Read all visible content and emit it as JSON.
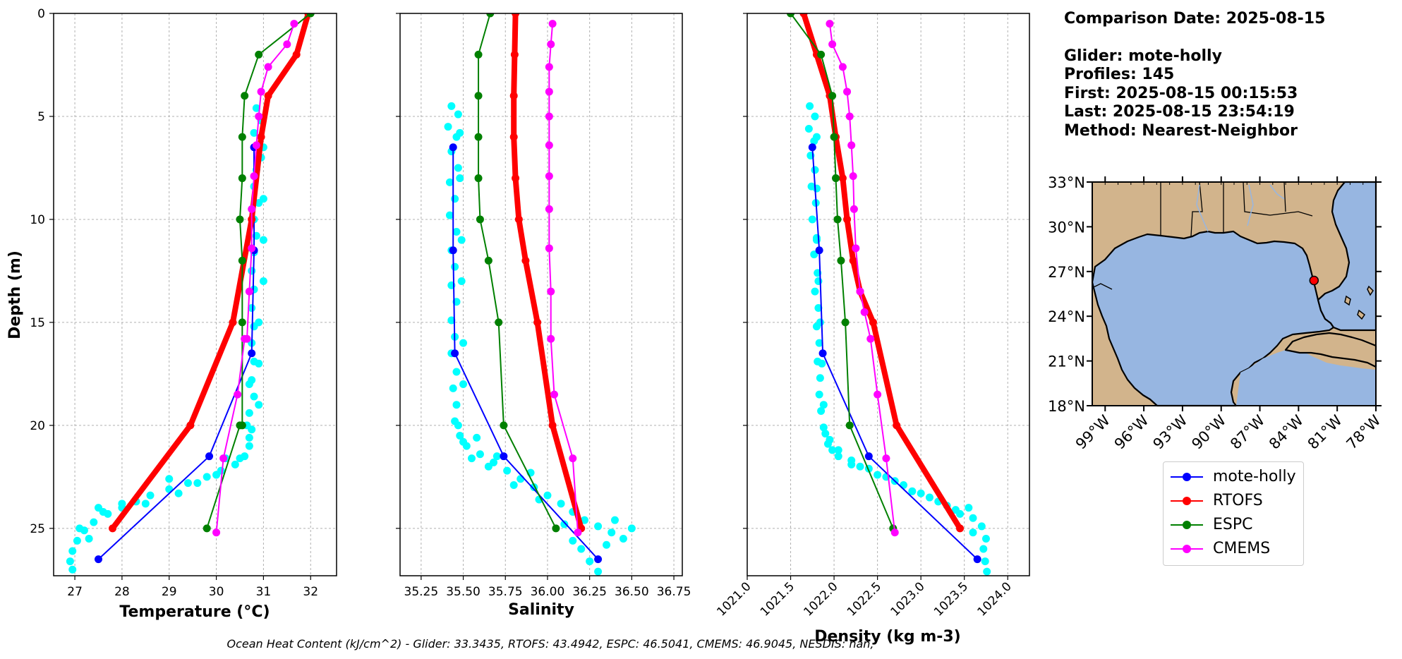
{
  "figure": {
    "footer": "Ocean Heat Content (kJ/cm^2) - Glider: 33.3435,  RTOFS: 43.4942,  ESPC: 46.5041,  CMEMS: 46.9045,  NESDIS: nan,"
  },
  "info": {
    "comparison_date": "Comparison Date: 2025-08-15",
    "glider": "Glider: mote-holly",
    "profiles": "Profiles: 145",
    "first": "First: 2025-08-15 00:15:53",
    "last": "Last: 2025-08-15 23:54:19",
    "method": "Method: Nearest-Neighbor"
  },
  "legend": [
    {
      "label": "mote-holly",
      "color": "#0000ff"
    },
    {
      "label": "RTOFS",
      "color": "#ff0000"
    },
    {
      "label": "ESPC",
      "color": "#008000"
    },
    {
      "label": "CMEMS",
      "color": "#ff00ff"
    }
  ],
  "chart_data": [
    {
      "type": "line",
      "title": "",
      "xlabel": "Temperature (°C)",
      "ylabel": "Depth (m)",
      "xlim": [
        26.55,
        32.55
      ],
      "ylim": [
        27.3,
        0
      ],
      "xticks": [
        27,
        28,
        29,
        30,
        31,
        32
      ],
      "yticks": [
        0,
        5,
        10,
        15,
        20,
        25
      ],
      "grid": true,
      "raw_color": "#00ffff",
      "raw_points": [
        [
          30.85,
          4.6
        ],
        [
          30.95,
          5.2
        ],
        [
          30.8,
          5.8
        ],
        [
          30.9,
          6.4
        ],
        [
          30.95,
          7.0
        ],
        [
          30.85,
          7.6
        ],
        [
          30.8,
          8.4
        ],
        [
          30.9,
          9.2
        ],
        [
          30.8,
          10.0
        ],
        [
          30.85,
          10.8
        ],
        [
          30.8,
          11.6
        ],
        [
          30.75,
          12.5
        ],
        [
          30.8,
          13.4
        ],
        [
          30.75,
          14.3
        ],
        [
          30.8,
          15.2
        ],
        [
          30.75,
          16.0
        ],
        [
          30.8,
          16.9
        ],
        [
          30.75,
          17.8
        ],
        [
          30.8,
          18.6
        ],
        [
          30.7,
          19.4
        ],
        [
          30.75,
          20.2
        ],
        [
          30.7,
          21.0
        ],
        [
          30.6,
          21.5
        ],
        [
          30.4,
          21.9
        ],
        [
          30.1,
          22.2
        ],
        [
          29.8,
          22.5
        ],
        [
          29.4,
          22.8
        ],
        [
          29.0,
          23.1
        ],
        [
          28.6,
          23.4
        ],
        [
          28.3,
          23.7
        ],
        [
          28.0,
          24.0
        ],
        [
          27.7,
          24.3
        ],
        [
          27.4,
          24.7
        ],
        [
          27.2,
          25.1
        ],
        [
          27.05,
          25.6
        ],
        [
          26.95,
          26.1
        ],
        [
          26.9,
          26.6
        ],
        [
          26.95,
          27.0
        ],
        [
          27.1,
          25.0
        ],
        [
          27.5,
          24.0
        ],
        [
          28.5,
          23.8
        ],
        [
          29.2,
          23.3
        ],
        [
          29.6,
          22.8
        ],
        [
          30.0,
          22.4
        ],
        [
          30.5,
          21.6
        ],
        [
          30.7,
          20.6
        ],
        [
          30.9,
          19.0
        ],
        [
          30.9,
          17.0
        ],
        [
          30.9,
          15.0
        ],
        [
          31.0,
          13.0
        ],
        [
          31.0,
          11.0
        ],
        [
          31.0,
          9.0
        ],
        [
          31.0,
          6.5
        ],
        [
          30.7,
          18.0
        ],
        [
          30.65,
          20.0
        ],
        [
          30.2,
          21.6
        ],
        [
          29.0,
          22.6
        ],
        [
          28.0,
          23.8
        ],
        [
          27.3,
          25.5
        ],
        [
          27.6,
          24.2
        ]
      ],
      "series": [
        {
          "name": "mote-holly",
          "color": "#0000ff",
          "width": 2,
          "marker": 11,
          "x": [
            30.8,
            30.8,
            30.75,
            29.85,
            27.5
          ],
          "y": [
            6.5,
            11.5,
            16.5,
            21.5,
            26.5
          ]
        },
        {
          "name": "RTOFS",
          "color": "#ff0000",
          "width": 8,
          "marker": 11,
          "x": [
            31.95,
            31.7,
            31.1,
            30.95,
            30.75,
            30.35,
            29.45,
            27.8
          ],
          "y": [
            0.0,
            2.0,
            4.0,
            6.0,
            10.0,
            15.0,
            20.0,
            25.0
          ]
        },
        {
          "name": "ESPC",
          "color": "#008000",
          "width": 2,
          "marker": 11,
          "x": [
            32.0,
            30.9,
            30.6,
            30.55,
            30.55,
            30.5,
            30.55,
            30.55,
            30.55,
            30.5,
            29.8
          ],
          "y": [
            0.0,
            2.0,
            4.0,
            6.0,
            8.0,
            10.0,
            12.0,
            15.0,
            20.0,
            20.0,
            25.0
          ]
        },
        {
          "name": "CMEMS",
          "color": "#ff00ff",
          "width": 2,
          "marker": 11,
          "x": [
            31.65,
            31.5,
            31.1,
            30.95,
            30.9,
            30.85,
            30.8,
            30.75,
            30.75,
            30.7,
            30.65,
            30.6,
            30.45,
            30.15,
            30.0
          ],
          "y": [
            0.5,
            1.5,
            2.6,
            3.8,
            5.0,
            6.4,
            7.9,
            9.5,
            11.4,
            13.5,
            15.8,
            15.8,
            18.5,
            21.6,
            25.2
          ]
        }
      ]
    },
    {
      "type": "line",
      "title": "",
      "xlabel": "Salinity",
      "ylabel": "",
      "xlim": [
        35.125,
        36.8
      ],
      "ylim": [
        27.3,
        0
      ],
      "xticks": [
        35.25,
        35.5,
        35.75,
        36.0,
        36.25,
        36.5,
        36.75
      ],
      "xticklabels": [
        "35.25",
        "35.50",
        "35.75",
        "36.00",
        "36.25",
        "36.50",
        "36.75"
      ],
      "yticks": [
        0,
        5,
        10,
        15,
        20,
        25
      ],
      "grid": true,
      "raw_color": "#00ffff",
      "raw_points": [
        [
          35.43,
          4.5
        ],
        [
          35.47,
          4.9
        ],
        [
          35.41,
          5.5
        ],
        [
          35.46,
          6.0
        ],
        [
          35.43,
          6.7
        ],
        [
          35.47,
          7.5
        ],
        [
          35.42,
          8.2
        ],
        [
          35.45,
          9.0
        ],
        [
          35.42,
          9.8
        ],
        [
          35.46,
          10.6
        ],
        [
          35.43,
          11.5
        ],
        [
          35.45,
          12.3
        ],
        [
          35.43,
          13.2
        ],
        [
          35.46,
          14.0
        ],
        [
          35.43,
          14.9
        ],
        [
          35.45,
          15.7
        ],
        [
          35.43,
          16.5
        ],
        [
          35.46,
          17.4
        ],
        [
          35.44,
          18.2
        ],
        [
          35.46,
          19.0
        ],
        [
          35.45,
          19.8
        ],
        [
          35.48,
          20.5
        ],
        [
          35.52,
          21.0
        ],
        [
          35.6,
          21.4
        ],
        [
          35.68,
          21.8
        ],
        [
          35.76,
          22.2
        ],
        [
          35.84,
          22.6
        ],
        [
          35.92,
          23.0
        ],
        [
          36.0,
          23.4
        ],
        [
          36.08,
          23.8
        ],
        [
          36.15,
          24.2
        ],
        [
          36.22,
          24.6
        ],
        [
          36.3,
          24.9
        ],
        [
          36.38,
          25.2
        ],
        [
          36.45,
          25.5
        ],
        [
          36.5,
          25.0
        ],
        [
          36.2,
          26.0
        ],
        [
          36.25,
          26.6
        ],
        [
          36.3,
          27.1
        ],
        [
          36.1,
          24.8
        ],
        [
          35.95,
          23.6
        ],
        [
          35.8,
          22.9
        ],
        [
          35.65,
          22.0
        ],
        [
          35.55,
          21.6
        ],
        [
          35.5,
          20.8
        ],
        [
          35.47,
          20.0
        ],
        [
          35.5,
          18.0
        ],
        [
          35.5,
          16.0
        ],
        [
          35.49,
          13.0
        ],
        [
          35.49,
          11.0
        ],
        [
          35.48,
          8.0
        ],
        [
          35.48,
          5.8
        ],
        [
          36.35,
          25.8
        ],
        [
          36.15,
          25.6
        ],
        [
          36.4,
          24.6
        ],
        [
          35.9,
          22.3
        ],
        [
          35.7,
          21.5
        ],
        [
          35.58,
          20.6
        ]
      ],
      "series": [
        {
          "name": "mote-holly",
          "color": "#0000ff",
          "width": 2,
          "marker": 11,
          "x": [
            35.44,
            35.44,
            35.45,
            35.74,
            36.3
          ],
          "y": [
            6.5,
            11.5,
            16.5,
            21.5,
            26.5
          ]
        },
        {
          "name": "RTOFS",
          "color": "#ff0000",
          "width": 8,
          "marker": 11,
          "x": [
            35.81,
            35.805,
            35.8,
            35.8,
            35.81,
            35.83,
            35.87,
            35.94,
            36.03,
            36.2
          ],
          "y": [
            0.0,
            2.0,
            4.0,
            6.0,
            8.0,
            10.0,
            12.0,
            15.0,
            20.0,
            25.0
          ]
        },
        {
          "name": "ESPC",
          "color": "#008000",
          "width": 2,
          "marker": 11,
          "x": [
            35.66,
            35.59,
            35.59,
            35.59,
            35.59,
            35.6,
            35.65,
            35.71,
            35.74,
            36.05
          ],
          "y": [
            0.0,
            2.0,
            4.0,
            6.0,
            8.0,
            10.0,
            12.0,
            15.0,
            20.0,
            25.0
          ]
        },
        {
          "name": "CMEMS",
          "color": "#ff00ff",
          "width": 2,
          "marker": 11,
          "x": [
            36.03,
            36.02,
            36.01,
            36.01,
            36.01,
            36.01,
            36.01,
            36.01,
            36.01,
            36.02,
            36.02,
            36.04,
            36.15,
            36.18
          ],
          "y": [
            0.5,
            1.5,
            2.6,
            3.8,
            5.0,
            6.4,
            7.9,
            9.5,
            11.4,
            13.5,
            15.8,
            18.5,
            21.6,
            25.2
          ]
        }
      ]
    },
    {
      "type": "line",
      "title": "",
      "xlabel": "Density (kg m-3)",
      "ylabel": "",
      "xlim": [
        1021.0,
        1024.25
      ],
      "ylim": [
        27.3,
        0
      ],
      "xticks": [
        1021.0,
        1021.5,
        1022.0,
        1022.5,
        1023.0,
        1023.5,
        1024.0
      ],
      "xticklabels": [
        "1021.0",
        "1021.5",
        "1022.0",
        "1022.5",
        "1023.0",
        "1023.5",
        "1024.0"
      ],
      "yticks": [
        0,
        5,
        10,
        15,
        20,
        25
      ],
      "grid": true,
      "raw_color": "#00ffff",
      "raw_points": [
        [
          1021.72,
          4.5
        ],
        [
          1021.78,
          5.0
        ],
        [
          1021.71,
          5.6
        ],
        [
          1021.77,
          6.2
        ],
        [
          1021.73,
          6.9
        ],
        [
          1021.78,
          7.6
        ],
        [
          1021.74,
          8.4
        ],
        [
          1021.79,
          9.2
        ],
        [
          1021.75,
          10.0
        ],
        [
          1021.8,
          10.9
        ],
        [
          1021.77,
          11.7
        ],
        [
          1021.81,
          12.6
        ],
        [
          1021.78,
          13.5
        ],
        [
          1021.82,
          14.3
        ],
        [
          1021.8,
          15.2
        ],
        [
          1021.83,
          16.0
        ],
        [
          1021.81,
          16.9
        ],
        [
          1021.84,
          17.7
        ],
        [
          1021.83,
          18.5
        ],
        [
          1021.85,
          19.3
        ],
        [
          1021.88,
          20.1
        ],
        [
          1021.95,
          20.7
        ],
        [
          1022.05,
          21.2
        ],
        [
          1022.2,
          21.7
        ],
        [
          1022.4,
          22.1
        ],
        [
          1022.6,
          22.5
        ],
        [
          1022.8,
          22.9
        ],
        [
          1023.0,
          23.3
        ],
        [
          1023.2,
          23.7
        ],
        [
          1023.4,
          24.1
        ],
        [
          1023.6,
          24.5
        ],
        [
          1023.7,
          24.9
        ],
        [
          1023.75,
          25.5
        ],
        [
          1023.72,
          26.0
        ],
        [
          1023.74,
          26.6
        ],
        [
          1023.76,
          27.1
        ],
        [
          1023.55,
          24.0
        ],
        [
          1023.3,
          23.9
        ],
        [
          1022.9,
          23.2
        ],
        [
          1022.5,
          22.4
        ],
        [
          1022.2,
          21.9
        ],
        [
          1021.98,
          21.2
        ],
        [
          1021.9,
          20.4
        ],
        [
          1021.88,
          19.0
        ],
        [
          1021.86,
          17.0
        ],
        [
          1021.84,
          15.0
        ],
        [
          1021.82,
          13.0
        ],
        [
          1021.8,
          11.0
        ],
        [
          1021.8,
          8.5
        ],
        [
          1021.8,
          6.0
        ],
        [
          1023.6,
          25.2
        ],
        [
          1023.45,
          24.3
        ],
        [
          1023.1,
          23.5
        ],
        [
          1022.7,
          22.7
        ],
        [
          1022.3,
          22.0
        ],
        [
          1022.05,
          21.5
        ],
        [
          1021.93,
          20.9
        ]
      ],
      "series": [
        {
          "name": "mote-holly",
          "color": "#0000ff",
          "width": 2,
          "marker": 11,
          "x": [
            1021.75,
            1021.83,
            1021.87,
            1022.4,
            1023.65
          ],
          "y": [
            6.5,
            11.5,
            16.5,
            21.5,
            26.5
          ]
        },
        {
          "name": "RTOFS",
          "color": "#ff0000",
          "width": 8,
          "marker": 11,
          "x": [
            1021.65,
            1021.8,
            1021.95,
            1022.02,
            1022.1,
            1022.15,
            1022.22,
            1022.3,
            1022.45,
            1022.72,
            1023.45
          ],
          "y": [
            0.0,
            2.0,
            4.0,
            6.0,
            8.0,
            10.0,
            12.0,
            13.5,
            15.0,
            20.0,
            25.0
          ]
        },
        {
          "name": "ESPC",
          "color": "#008000",
          "width": 2,
          "marker": 11,
          "x": [
            1021.5,
            1021.85,
            1021.98,
            1022.0,
            1022.02,
            1022.04,
            1022.08,
            1022.13,
            1022.18,
            1022.68
          ],
          "y": [
            0.0,
            2.0,
            4.0,
            6.0,
            8.0,
            10.0,
            12.0,
            15.0,
            20.0,
            25.0
          ]
        },
        {
          "name": "CMEMS",
          "color": "#ff00ff",
          "width": 2,
          "marker": 11,
          "x": [
            1021.95,
            1021.98,
            1022.1,
            1022.15,
            1022.18,
            1022.2,
            1022.22,
            1022.23,
            1022.25,
            1022.3,
            1022.35,
            1022.42,
            1022.5,
            1022.6,
            1022.7
          ],
          "y": [
            0.5,
            1.5,
            2.6,
            3.8,
            5.0,
            6.4,
            7.9,
            9.5,
            11.4,
            13.5,
            14.5,
            15.8,
            18.5,
            21.6,
            25.2
          ]
        }
      ]
    },
    {
      "type": "map",
      "title": "",
      "lon_range": [
        -100,
        -78
      ],
      "lat_range": [
        18,
        33
      ],
      "xticks": [
        -99,
        -96,
        -93,
        -90,
        -87,
        -84,
        -81,
        -78
      ],
      "xticklabels": [
        "99°W",
        "96°W",
        "93°W",
        "90°W",
        "87°W",
        "84°W",
        "81°W",
        "78°W"
      ],
      "yticks": [
        18,
        21,
        24,
        27,
        30,
        33
      ],
      "yticklabels": [
        "18°N",
        "21°N",
        "24°N",
        "27°N",
        "30°N",
        "33°N"
      ],
      "land_color": "#d2b48c",
      "ocean_color": "#97b6e1",
      "glider_location": {
        "lon": -82.8,
        "lat": 26.4,
        "color": "#ff0000"
      }
    }
  ]
}
